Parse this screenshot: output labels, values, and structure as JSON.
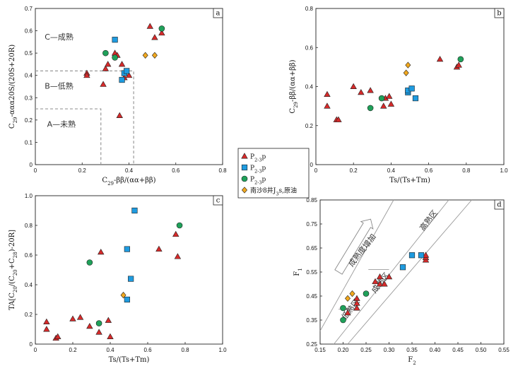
{
  "colors": {
    "red": "#d62a2a",
    "blue": "#1e9be0",
    "green": "#1fa15a",
    "orange": "#f2a81d",
    "axis": "#222222",
    "dash": "#999999",
    "band": "#999999"
  },
  "legend": {
    "items": [
      {
        "marker": "triangle",
        "color": "#d62a2a",
        "label": "P",
        "sub": "2-3",
        "suffix": "p"
      },
      {
        "marker": "square",
        "color": "#1e9be0",
        "label": "P",
        "sub": "2-3",
        "suffix": "p"
      },
      {
        "marker": "circle",
        "color": "#1fa15a",
        "label": "P",
        "sub": "2-3",
        "suffix": "p"
      },
      {
        "marker": "diamond",
        "color": "#f2a81d",
        "label": "南沙8井J",
        "sub": "3",
        "suffix": "s,原油"
      }
    ]
  },
  "chart_data": [
    {
      "id": "a",
      "type": "scatter",
      "panel_label": "a",
      "xlabel": "C29-ββ/(αα+ββ)",
      "ylabel": "C29-ααα20S/(20S+20R)",
      "xlim": [
        0,
        0.8
      ],
      "ylim": [
        0,
        0.7
      ],
      "xticks": [
        0,
        0.2,
        0.4,
        0.6,
        0.8
      ],
      "xtick_labels": [
        "0",
        "0.2",
        "0.4",
        "0.6",
        "0.8"
      ],
      "yticks": [
        0,
        0.1,
        0.2,
        0.3,
        0.4,
        0.5,
        0.6,
        0.7
      ],
      "ytick_labels": [
        "0",
        "0.1",
        "0.2",
        "0.3",
        "0.4",
        "0.5",
        "0.6",
        "0.7"
      ],
      "zones": [
        {
          "x": 0.28,
          "y": 0.25
        },
        {
          "x": 0.42,
          "y": 0.42
        }
      ],
      "annotations": [
        {
          "text": "C—成熟",
          "x": 0.04,
          "y": 0.56
        },
        {
          "text": "B—低熟",
          "x": 0.04,
          "y": 0.34
        },
        {
          "text": "A—未熟",
          "x": 0.05,
          "y": 0.17
        }
      ],
      "series": [
        {
          "marker": "triangle",
          "color": "#d62a2a",
          "points": [
            [
              0.22,
              0.41
            ],
            [
              0.22,
              0.4
            ],
            [
              0.29,
              0.36
            ],
            [
              0.3,
              0.43
            ],
            [
              0.31,
              0.45
            ],
            [
              0.34,
              0.5
            ],
            [
              0.35,
              0.49
            ],
            [
              0.36,
              0.22
            ],
            [
              0.37,
              0.45
            ],
            [
              0.38,
              0.39
            ],
            [
              0.4,
              0.4
            ],
            [
              0.49,
              0.62
            ],
            [
              0.51,
              0.57
            ],
            [
              0.54,
              0.59
            ]
          ]
        },
        {
          "marker": "square",
          "color": "#1e9be0",
          "points": [
            [
              0.34,
              0.56
            ],
            [
              0.37,
              0.38
            ],
            [
              0.38,
              0.41
            ],
            [
              0.39,
              0.42
            ]
          ]
        },
        {
          "marker": "circle",
          "color": "#1fa15a",
          "points": [
            [
              0.3,
              0.5
            ],
            [
              0.34,
              0.48
            ],
            [
              0.54,
              0.61
            ]
          ]
        },
        {
          "marker": "diamond",
          "color": "#f2a81d",
          "points": [
            [
              0.47,
              0.49
            ],
            [
              0.51,
              0.49
            ]
          ]
        }
      ]
    },
    {
      "id": "b",
      "type": "scatter",
      "panel_label": "b",
      "xlabel": "Ts/(Ts+Tm)",
      "ylabel": "C29-ββ/(αα+ββ)",
      "xlim": [
        0,
        1.0
      ],
      "ylim": [
        0,
        0.8
      ],
      "xticks": [
        0,
        0.2,
        0.4,
        0.6,
        0.8,
        1.0
      ],
      "xtick_labels": [
        "0",
        "0.2",
        "0.4",
        "0.6",
        "0.8",
        "1.0"
      ],
      "yticks": [
        0,
        0.2,
        0.4,
        0.6,
        0.8
      ],
      "ytick_labels": [
        "0",
        "0.2",
        "0.4",
        "0.6",
        "0.8"
      ],
      "series": [
        {
          "marker": "triangle",
          "color": "#d62a2a",
          "points": [
            [
              0.06,
              0.36
            ],
            [
              0.06,
              0.3
            ],
            [
              0.11,
              0.23
            ],
            [
              0.12,
              0.23
            ],
            [
              0.2,
              0.4
            ],
            [
              0.24,
              0.37
            ],
            [
              0.29,
              0.38
            ],
            [
              0.36,
              0.3
            ],
            [
              0.37,
              0.34
            ],
            [
              0.39,
              0.35
            ],
            [
              0.4,
              0.31
            ],
            [
              0.66,
              0.54
            ],
            [
              0.75,
              0.5
            ],
            [
              0.76,
              0.51
            ]
          ]
        },
        {
          "marker": "square",
          "color": "#1e9be0",
          "points": [
            [
              0.49,
              0.37
            ],
            [
              0.49,
              0.38
            ],
            [
              0.51,
              0.39
            ],
            [
              0.53,
              0.34
            ]
          ]
        },
        {
          "marker": "circle",
          "color": "#1fa15a",
          "points": [
            [
              0.29,
              0.29
            ],
            [
              0.35,
              0.34
            ],
            [
              0.77,
              0.54
            ]
          ]
        },
        {
          "marker": "diamond",
          "color": "#f2a81d",
          "points": [
            [
              0.48,
              0.47
            ],
            [
              0.49,
              0.51
            ]
          ]
        }
      ]
    },
    {
      "id": "c",
      "type": "scatter",
      "panel_label": "c",
      "xlabel": "Ts/(Ts+Tm)",
      "ylabel": "TA[C20/(C20+C28)-20R]",
      "xlim": [
        0,
        1.0
      ],
      "ylim": [
        0,
        1.0
      ],
      "xticks": [
        0,
        0.2,
        0.4,
        0.6,
        0.8,
        1.0
      ],
      "xtick_labels": [
        "0",
        "0.2",
        "0.4",
        "0.6",
        "0.8",
        "1.0"
      ],
      "yticks": [
        0,
        0.2,
        0.4,
        0.6,
        0.8,
        1.0
      ],
      "ytick_labels": [
        "0",
        "0.2",
        "0.4",
        "0.6",
        "0.8",
        "1.0"
      ],
      "series": [
        {
          "marker": "triangle",
          "color": "#d62a2a",
          "points": [
            [
              0.06,
              0.15
            ],
            [
              0.06,
              0.1
            ],
            [
              0.11,
              0.04
            ],
            [
              0.12,
              0.05
            ],
            [
              0.2,
              0.17
            ],
            [
              0.24,
              0.18
            ],
            [
              0.29,
              0.12
            ],
            [
              0.35,
              0.62
            ],
            [
              0.34,
              0.08
            ],
            [
              0.39,
              0.16
            ],
            [
              0.4,
              0.05
            ],
            [
              0.66,
              0.64
            ],
            [
              0.75,
              0.74
            ],
            [
              0.76,
              0.59
            ]
          ]
        },
        {
          "marker": "square",
          "color": "#1e9be0",
          "points": [
            [
              0.49,
              0.64
            ],
            [
              0.49,
              0.3
            ],
            [
              0.51,
              0.44
            ],
            [
              0.53,
              0.9
            ]
          ]
        },
        {
          "marker": "circle",
          "color": "#1fa15a",
          "points": [
            [
              0.29,
              0.55
            ],
            [
              0.34,
              0.14
            ],
            [
              0.77,
              0.8
            ]
          ]
        },
        {
          "marker": "diamond",
          "color": "#f2a81d",
          "points": [
            [
              0.47,
              0.33
            ]
          ]
        }
      ]
    },
    {
      "id": "d",
      "type": "scatter",
      "panel_label": "d",
      "xlabel": "F2",
      "ylabel": "F1",
      "xlim": [
        0.15,
        0.55
      ],
      "ylim": [
        0.25,
        0.85
      ],
      "xticks": [
        0.15,
        0.2,
        0.25,
        0.3,
        0.35,
        0.4,
        0.45,
        0.5,
        0.55
      ],
      "xtick_labels": [
        "0.15",
        "0.20",
        "0.25",
        "0.30",
        "0.35",
        "0.40",
        "0.45",
        "0.50",
        "0.55"
      ],
      "yticks": [
        0.25,
        0.35,
        0.45,
        0.55,
        0.65,
        0.75,
        0.85
      ],
      "ytick_labels": [
        "0.25",
        "0.35",
        "0.45",
        "0.55",
        "0.65",
        "0.75",
        "0.85"
      ],
      "annotations": [
        {
          "text": "成熟度增加",
          "x": 0.22,
          "y": 0.57,
          "rotate": -52
        },
        {
          "text": "高熟区",
          "x": 0.375,
          "y": 0.72,
          "rotate": -52
        },
        {
          "text": "成熟区",
          "x": 0.27,
          "y": 0.46,
          "rotate": -52
        },
        {
          "text": "低熟区",
          "x": 0.205,
          "y": 0.35,
          "rotate": -52
        }
      ],
      "series": [
        {
          "marker": "triangle",
          "color": "#d62a2a",
          "points": [
            [
              0.21,
              0.38
            ],
            [
              0.23,
              0.4
            ],
            [
              0.23,
              0.42
            ],
            [
              0.23,
              0.44
            ],
            [
              0.27,
              0.51
            ],
            [
              0.28,
              0.53
            ],
            [
              0.28,
              0.5
            ],
            [
              0.29,
              0.5
            ],
            [
              0.3,
              0.53
            ],
            [
              0.38,
              0.6
            ],
            [
              0.38,
              0.61
            ],
            [
              0.38,
              0.62
            ]
          ]
        },
        {
          "marker": "square",
          "color": "#1e9be0",
          "points": [
            [
              0.33,
              0.57
            ],
            [
              0.35,
              0.62
            ],
            [
              0.37,
              0.62
            ]
          ]
        },
        {
          "marker": "circle",
          "color": "#1fa15a",
          "points": [
            [
              0.2,
              0.4
            ],
            [
              0.2,
              0.35
            ],
            [
              0.25,
              0.46
            ]
          ]
        },
        {
          "marker": "diamond",
          "color": "#f2a81d",
          "points": [
            [
              0.21,
              0.44
            ],
            [
              0.22,
              0.46
            ]
          ]
        }
      ]
    }
  ]
}
